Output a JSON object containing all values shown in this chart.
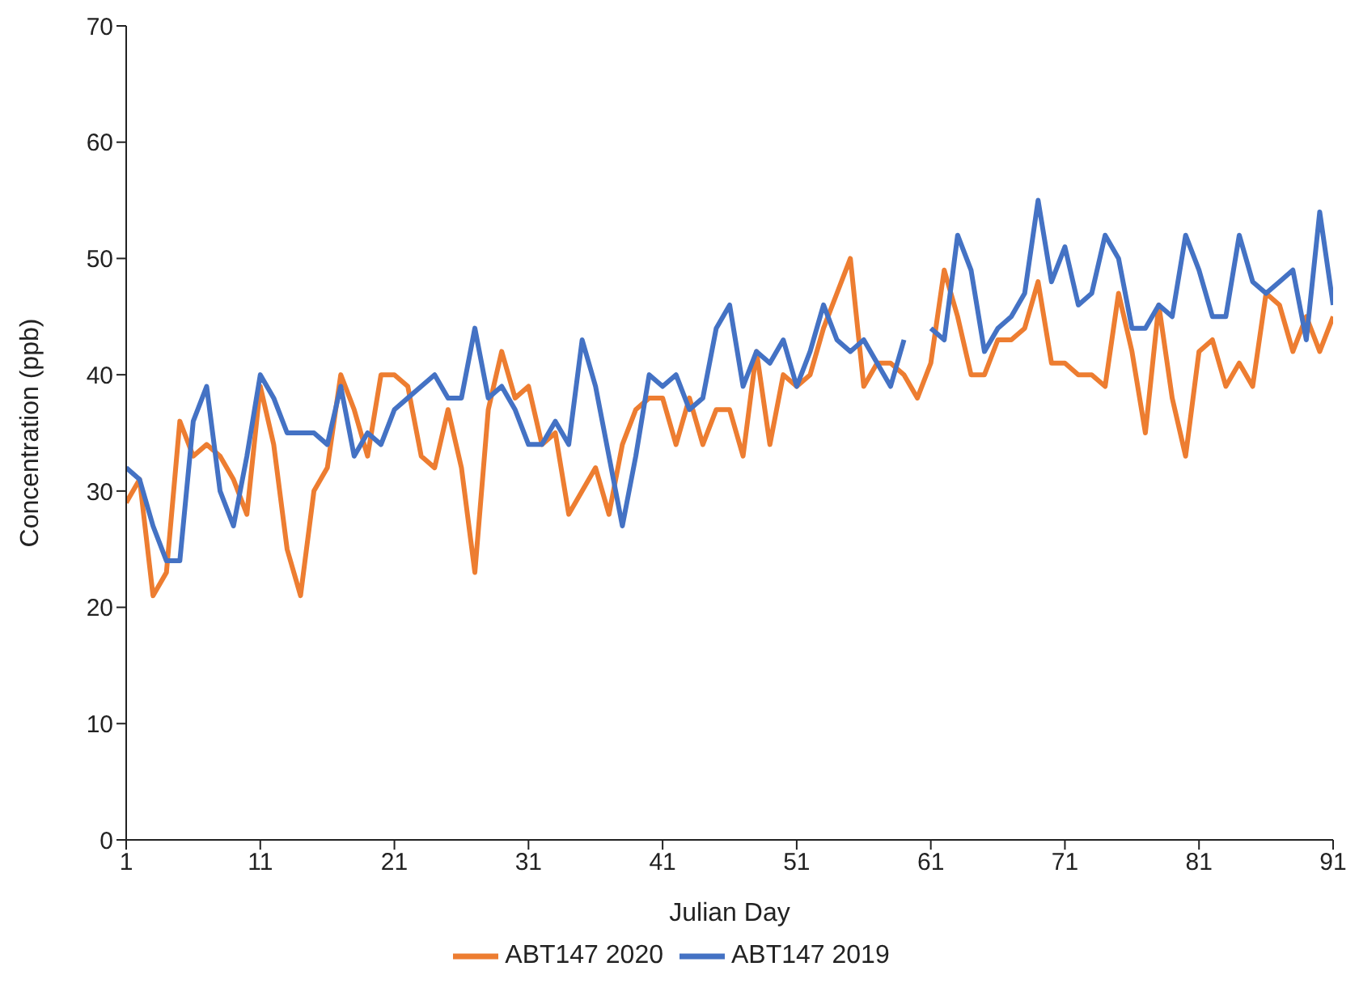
{
  "chart_data": {
    "type": "line",
    "xlabel": "Julian Day",
    "ylabel": "Concentration (ppb)",
    "x": [
      1,
      2,
      3,
      4,
      5,
      6,
      7,
      8,
      9,
      10,
      11,
      12,
      13,
      14,
      15,
      16,
      17,
      18,
      19,
      20,
      21,
      22,
      23,
      24,
      25,
      26,
      27,
      28,
      29,
      30,
      31,
      32,
      33,
      34,
      35,
      36,
      37,
      38,
      39,
      40,
      41,
      42,
      43,
      44,
      45,
      46,
      47,
      48,
      49,
      50,
      51,
      52,
      53,
      54,
      55,
      56,
      57,
      58,
      59,
      60,
      61,
      62,
      63,
      64,
      65,
      66,
      67,
      68,
      69,
      70,
      71,
      72,
      73,
      74,
      75,
      76,
      77,
      78,
      79,
      80,
      81,
      82,
      83,
      84,
      85,
      86,
      87,
      88,
      89,
      90,
      91
    ],
    "series": [
      {
        "name": "ABT147 2020",
        "color": "#ed7d31",
        "values": [
          29,
          31,
          21,
          23,
          36,
          33,
          34,
          33,
          31,
          28,
          39,
          34,
          25,
          21,
          30,
          32,
          40,
          37,
          33,
          40,
          40,
          39,
          33,
          32,
          37,
          32,
          23,
          37,
          42,
          38,
          39,
          34,
          35,
          28,
          30,
          32,
          28,
          34,
          37,
          38,
          38,
          34,
          38,
          34,
          37,
          37,
          33,
          42,
          34,
          40,
          39,
          40,
          44,
          47,
          50,
          39,
          41,
          41,
          40,
          38,
          41,
          49,
          45,
          40,
          40,
          43,
          43,
          44,
          48,
          41,
          41,
          40,
          40,
          39,
          47,
          42,
          35,
          46,
          38,
          33,
          42,
          43,
          39,
          41,
          39,
          47,
          46,
          42,
          45,
          42,
          45
        ]
      },
      {
        "name": "ABT147 2019",
        "color": "#4472c4",
        "values": [
          32,
          31,
          27,
          24,
          24,
          36,
          39,
          30,
          27,
          33,
          40,
          38,
          35,
          35,
          35,
          34,
          39,
          33,
          35,
          34,
          37,
          38,
          39,
          40,
          38,
          38,
          44,
          38,
          39,
          37,
          34,
          34,
          36,
          34,
          43,
          39,
          33,
          27,
          33,
          40,
          39,
          40,
          37,
          38,
          44,
          46,
          39,
          42,
          41,
          43,
          39,
          42,
          46,
          43,
          42,
          43,
          41,
          39,
          43,
          null,
          44,
          43,
          52,
          49,
          42,
          44,
          45,
          47,
          55,
          48,
          51,
          46,
          47,
          52,
          50,
          44,
          44,
          46,
          45,
          52,
          49,
          45,
          45,
          52,
          48,
          47,
          48,
          49,
          43,
          54,
          46
        ]
      }
    ],
    "xlim": [
      1,
      91
    ],
    "xticks": [
      1,
      11,
      21,
      31,
      41,
      51,
      61,
      71,
      81,
      91
    ],
    "ylim": [
      0,
      70
    ],
    "yticks": [
      0,
      10,
      20,
      30,
      40,
      50,
      60,
      70
    ],
    "grid": false,
    "legend": "bottom",
    "marker": "none",
    "line_style": "solid"
  }
}
